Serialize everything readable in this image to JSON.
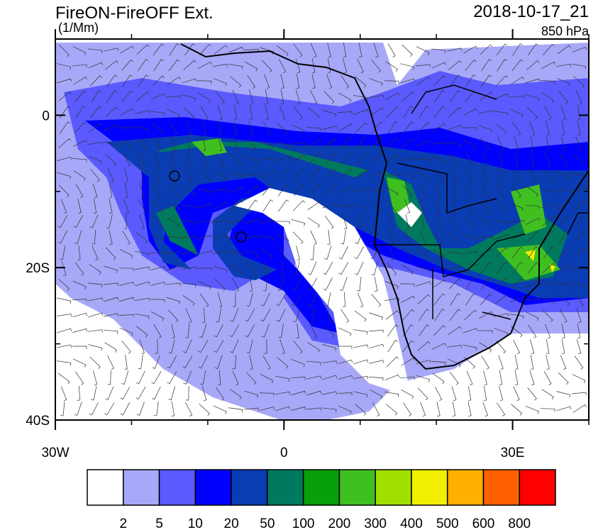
{
  "title": "FireON-FireOFF Ext.",
  "units": "(1/Mm)",
  "time": "2018-10-17_21",
  "level": "850 hPa",
  "map": {
    "lon_range": [
      -30,
      40
    ],
    "lat_range": [
      -40,
      10
    ],
    "lat_ticks": [
      {
        "value": 0,
        "label": "0"
      },
      {
        "value": -20,
        "label": "20S"
      },
      {
        "value": -40,
        "label": "40S"
      }
    ],
    "lon_ticks": [
      {
        "value": -30,
        "label": "30W"
      },
      {
        "value": 0,
        "label": "0"
      },
      {
        "value": 30,
        "label": "30E"
      }
    ]
  },
  "colorbar": {
    "levels": [
      2,
      5,
      10,
      20,
      50,
      100,
      200,
      300,
      400,
      500,
      600,
      800
    ],
    "colors": [
      "#ffffff",
      "#a8a8f8",
      "#5a5aff",
      "#0000ff",
      "#0a3cb4",
      "#007a5e",
      "#08a008",
      "#40c020",
      "#a0e000",
      "#f0f000",
      "#ffb000",
      "#ff6000",
      "#ff0000"
    ]
  }
}
